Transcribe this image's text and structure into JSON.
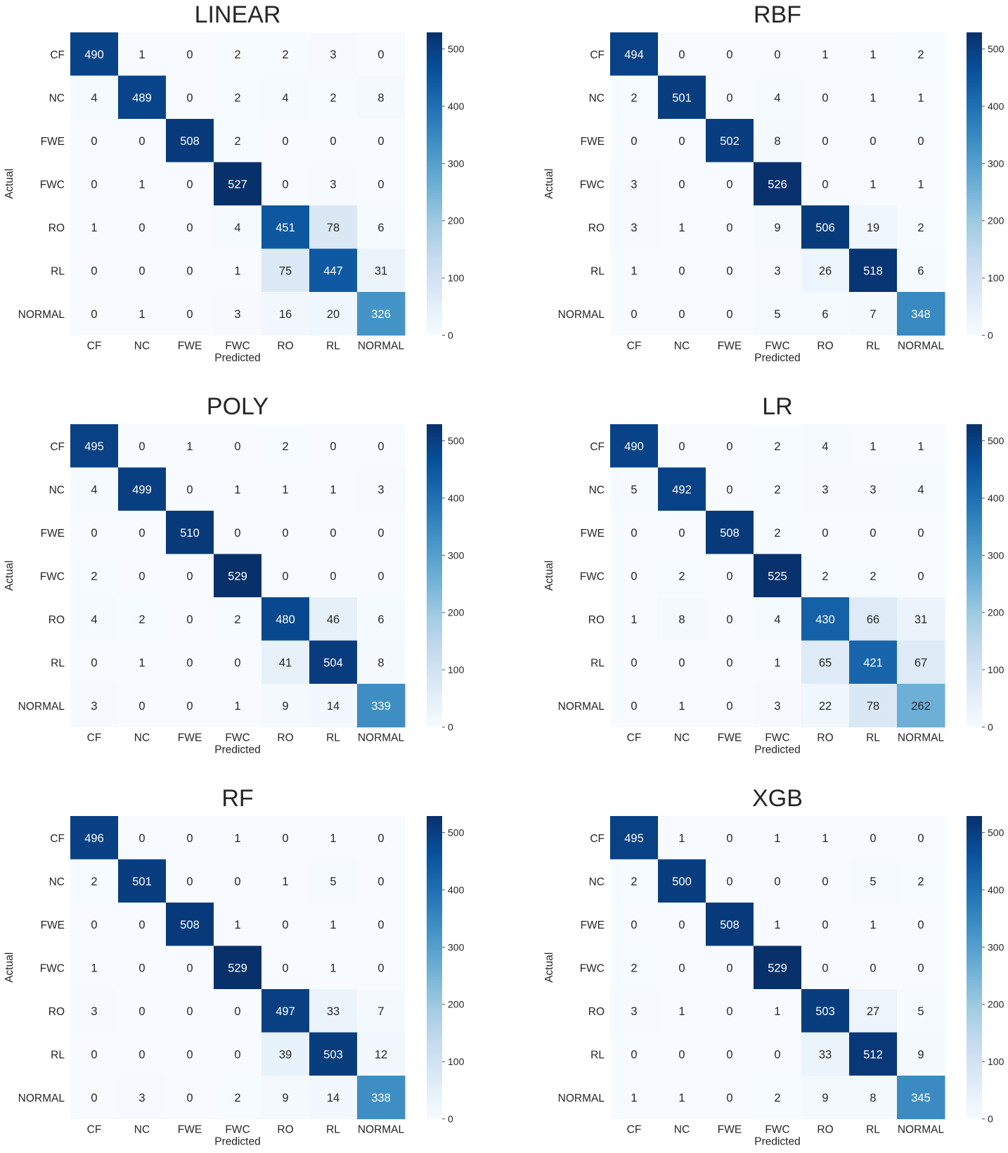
{
  "figure": {
    "row_labels": [
      "CF",
      "NC",
      "FWE",
      "FWC",
      "RO",
      "RL",
      "NORMAL"
    ],
    "col_labels": [
      "CF",
      "NC",
      "FWE",
      "FWC",
      "RO",
      "RL",
      "NORMAL"
    ],
    "xlabel": "Predicted",
    "ylabel": "Actual",
    "colorbar_ticks": [
      0,
      100,
      200,
      300,
      400,
      500
    ],
    "colorbar_range": [
      0,
      529
    ],
    "colormap": [
      "#f7fbff",
      "#deebf7",
      "#c6dbef",
      "#9ecae1",
      "#6baed6",
      "#4292c6",
      "#2171b5",
      "#08519c",
      "#08306b"
    ],
    "text_dark": "#262626",
    "text_light": "#ffffff"
  },
  "chart_data": [
    {
      "type": "heatmap",
      "title": "LINEAR",
      "xlabel": "Predicted",
      "ylabel": "Actual",
      "values": [
        [
          490,
          1,
          0,
          2,
          2,
          3,
          0
        ],
        [
          4,
          489,
          0,
          2,
          4,
          2,
          8
        ],
        [
          0,
          0,
          508,
          2,
          0,
          0,
          0
        ],
        [
          0,
          1,
          0,
          527,
          0,
          3,
          0
        ],
        [
          1,
          0,
          0,
          4,
          451,
          78,
          6
        ],
        [
          0,
          0,
          0,
          1,
          75,
          447,
          31
        ],
        [
          0,
          1,
          0,
          3,
          16,
          20,
          326
        ]
      ]
    },
    {
      "type": "heatmap",
      "title": "RBF",
      "xlabel": "Predicted",
      "ylabel": "Actual",
      "values": [
        [
          494,
          0,
          0,
          0,
          1,
          1,
          2
        ],
        [
          2,
          501,
          0,
          4,
          0,
          1,
          1
        ],
        [
          0,
          0,
          502,
          8,
          0,
          0,
          0
        ],
        [
          3,
          0,
          0,
          526,
          0,
          1,
          1
        ],
        [
          3,
          1,
          0,
          9,
          506,
          19,
          2
        ],
        [
          1,
          0,
          0,
          3,
          26,
          518,
          6
        ],
        [
          0,
          0,
          0,
          5,
          6,
          7,
          348
        ]
      ]
    },
    {
      "type": "heatmap",
      "title": "POLY",
      "xlabel": "Predicted",
      "ylabel": "Actual",
      "values": [
        [
          495,
          0,
          1,
          0,
          2,
          0,
          0
        ],
        [
          4,
          499,
          0,
          1,
          1,
          1,
          3
        ],
        [
          0,
          0,
          510,
          0,
          0,
          0,
          0
        ],
        [
          2,
          0,
          0,
          529,
          0,
          0,
          0
        ],
        [
          4,
          2,
          0,
          2,
          480,
          46,
          6
        ],
        [
          0,
          1,
          0,
          0,
          41,
          504,
          8
        ],
        [
          3,
          0,
          0,
          1,
          9,
          14,
          339
        ]
      ]
    },
    {
      "type": "heatmap",
      "title": "LR",
      "xlabel": "Predicted",
      "ylabel": "Actual",
      "values": [
        [
          490,
          0,
          0,
          2,
          4,
          1,
          1
        ],
        [
          5,
          492,
          0,
          2,
          3,
          3,
          4
        ],
        [
          0,
          0,
          508,
          2,
          0,
          0,
          0
        ],
        [
          0,
          2,
          0,
          525,
          2,
          2,
          0
        ],
        [
          1,
          8,
          0,
          4,
          430,
          66,
          31
        ],
        [
          0,
          0,
          0,
          1,
          65,
          421,
          67
        ],
        [
          0,
          1,
          0,
          3,
          22,
          78,
          262
        ]
      ]
    },
    {
      "type": "heatmap",
      "title": "RF",
      "xlabel": "Predicted",
      "ylabel": "Actual",
      "values": [
        [
          496,
          0,
          0,
          1,
          0,
          1,
          0
        ],
        [
          2,
          501,
          0,
          0,
          1,
          5,
          0
        ],
        [
          0,
          0,
          508,
          1,
          0,
          1,
          0
        ],
        [
          1,
          0,
          0,
          529,
          0,
          1,
          0
        ],
        [
          3,
          0,
          0,
          0,
          497,
          33,
          7
        ],
        [
          0,
          0,
          0,
          0,
          39,
          503,
          12
        ],
        [
          0,
          3,
          0,
          2,
          9,
          14,
          338
        ]
      ]
    },
    {
      "type": "heatmap",
      "title": "XGB",
      "xlabel": "Predicted",
      "ylabel": "Actual",
      "values": [
        [
          495,
          1,
          0,
          1,
          1,
          0,
          0
        ],
        [
          2,
          500,
          0,
          0,
          0,
          5,
          2
        ],
        [
          0,
          0,
          508,
          1,
          0,
          1,
          0
        ],
        [
          2,
          0,
          0,
          529,
          0,
          0,
          0
        ],
        [
          3,
          1,
          0,
          1,
          503,
          27,
          5
        ],
        [
          0,
          0,
          0,
          0,
          33,
          512,
          9
        ],
        [
          1,
          1,
          0,
          2,
          9,
          8,
          345
        ]
      ]
    }
  ]
}
